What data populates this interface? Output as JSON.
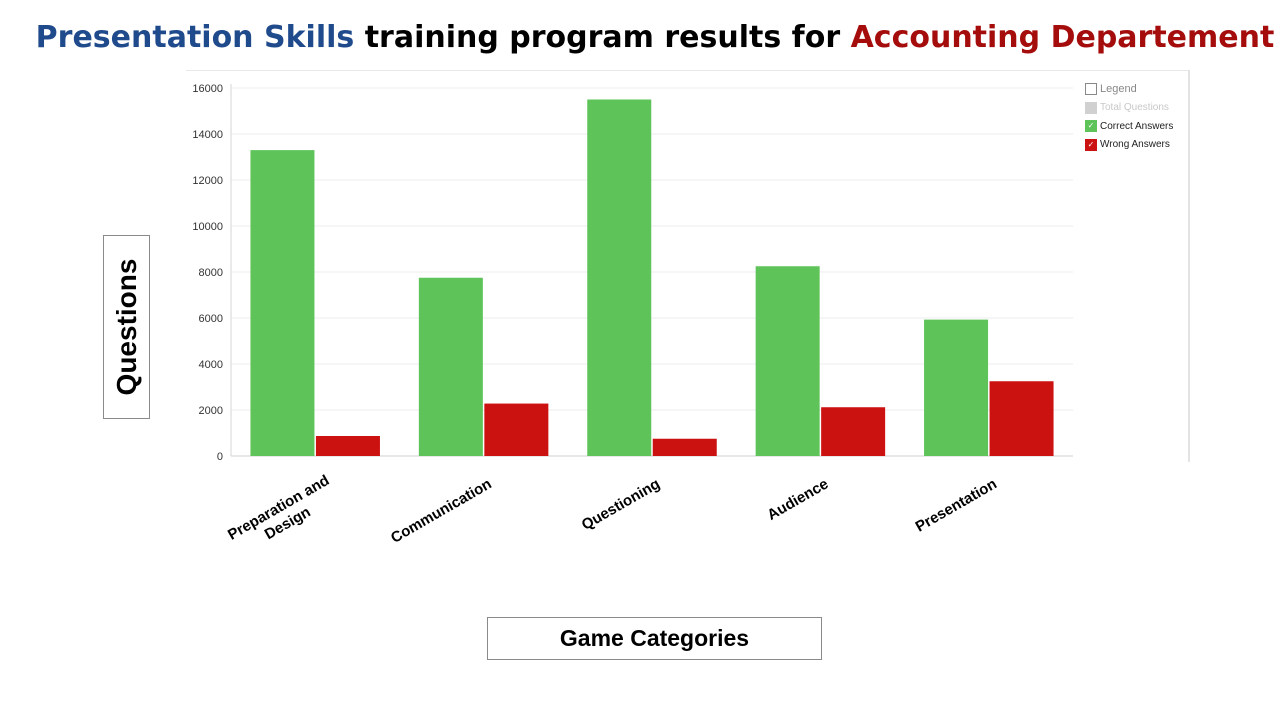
{
  "title": {
    "part1": "Presentation Skills",
    "part2": " training program results for ",
    "part3": "Accounting Departement"
  },
  "legend": {
    "title": "Legend",
    "items": [
      {
        "label": "Total Questions",
        "color": "#d0d0d0",
        "text_color": "#c8c8c8",
        "checked": false
      },
      {
        "label": "Correct Answers",
        "color": "#5ec45a",
        "text_color": "#222222",
        "checked": true
      },
      {
        "label": "Wrong Answers",
        "color": "#cc1111",
        "text_color": "#222222",
        "checked": true
      }
    ],
    "check_glyph": "✓"
  },
  "chart_data": {
    "type": "bar",
    "categories": [
      "Preparation and Design",
      "Communication",
      "Questioning",
      "Audience",
      "Presentation"
    ],
    "category_lines": [
      [
        "Preparation and",
        "Design"
      ],
      [
        "Communication"
      ],
      [
        "Questioning"
      ],
      [
        "Audience"
      ],
      [
        "Presentation"
      ]
    ],
    "series": [
      {
        "name": "Correct Answers",
        "color": "#5ec45a",
        "values": [
          13300,
          7750,
          15500,
          8250,
          5930
        ]
      },
      {
        "name": "Wrong Answers",
        "color": "#cc1111",
        "values": [
          870,
          2280,
          750,
          2120,
          3250
        ]
      }
    ],
    "xlabel": "Game Categories",
    "ylabel": "Questions",
    "ylim": [
      0,
      16000
    ],
    "yticks": [
      "0",
      "2000",
      "4000",
      "6000",
      "8000",
      "10000",
      "12000",
      "14000",
      "16000"
    ],
    "grid": true,
    "legend_position": "top-right"
  }
}
